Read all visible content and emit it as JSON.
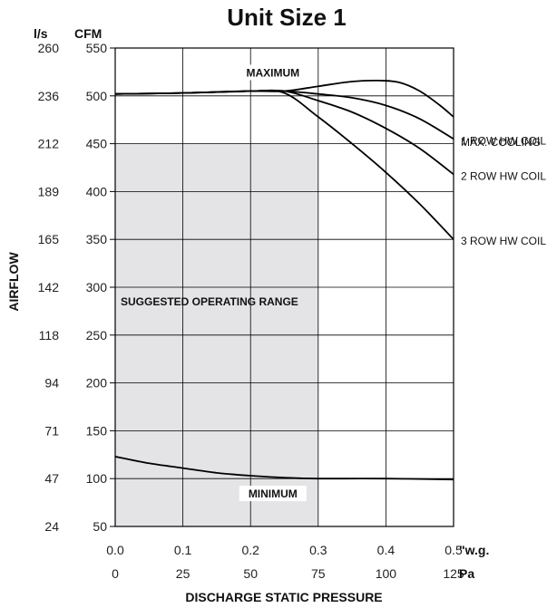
{
  "chart_data": {
    "type": "line",
    "title": "Unit Size 1",
    "ylabel": "AIRFLOW",
    "xlabel": "DISCHARGE STATIC PRESSURE",
    "y_units": {
      "primary": "CFM",
      "secondary": "l/s"
    },
    "x_units": {
      "primary": "\"w.g.",
      "secondary": "Pa"
    },
    "xlim": [
      0.0,
      0.5
    ],
    "ylim": [
      50,
      550
    ],
    "grid": true,
    "x_ticks": [
      {
        "wg": "0.0",
        "pa": "0"
      },
      {
        "wg": "0.1",
        "pa": "25"
      },
      {
        "wg": "0.2",
        "pa": "50"
      },
      {
        "wg": "0.3",
        "pa": "75"
      },
      {
        "wg": "0.4",
        "pa": "100"
      },
      {
        "wg": "0.5",
        "pa": "125"
      }
    ],
    "y_ticks": [
      {
        "cfm": "550",
        "ls": "260"
      },
      {
        "cfm": "500",
        "ls": "236"
      },
      {
        "cfm": "450",
        "ls": "212"
      },
      {
        "cfm": "400",
        "ls": "189"
      },
      {
        "cfm": "350",
        "ls": "165"
      },
      {
        "cfm": "300",
        "ls": "142"
      },
      {
        "cfm": "250",
        "ls": "118"
      },
      {
        "cfm": "200",
        "ls": "94"
      },
      {
        "cfm": "150",
        "ls": "71"
      },
      {
        "cfm": "100",
        "ls": "47"
      },
      {
        "cfm": "50",
        "ls": "24"
      }
    ],
    "operating_range": {
      "x": [
        0.0,
        0.3
      ],
      "y": [
        50,
        450
      ],
      "label": "SUGGESTED OPERATING RANGE"
    },
    "annotations": {
      "maximum": "MAXIMUM",
      "minimum": "MINIMUM"
    },
    "series": [
      {
        "name": "MAX. COOLING",
        "x": [
          0.0,
          0.1,
          0.2,
          0.25,
          0.3,
          0.35,
          0.39,
          0.42,
          0.45,
          0.48,
          0.5
        ],
        "y": [
          502,
          503,
          505,
          505,
          510,
          515,
          516,
          514,
          505,
          490,
          478
        ]
      },
      {
        "name": "1 ROW HW COIL",
        "x": [
          0.0,
          0.1,
          0.2,
          0.25,
          0.3,
          0.35,
          0.4,
          0.45,
          0.5
        ],
        "y": [
          502,
          503,
          505,
          505,
          502,
          498,
          490,
          476,
          455
        ]
      },
      {
        "name": "2 ROW HW COIL",
        "x": [
          0.0,
          0.1,
          0.2,
          0.25,
          0.3,
          0.35,
          0.4,
          0.45,
          0.5
        ],
        "y": [
          502,
          503,
          505,
          505,
          495,
          483,
          466,
          445,
          418
        ]
      },
      {
        "name": "3 ROW HW COIL",
        "x": [
          0.0,
          0.1,
          0.2,
          0.25,
          0.3,
          0.35,
          0.4,
          0.45,
          0.5
        ],
        "y": [
          502,
          503,
          505,
          503,
          478,
          450,
          420,
          387,
          350
        ]
      },
      {
        "name": "MINIMUM",
        "x": [
          0.0,
          0.05,
          0.1,
          0.15,
          0.2,
          0.25,
          0.3,
          0.4,
          0.5
        ],
        "y": [
          123,
          116,
          111,
          106,
          103,
          101,
          100,
          100,
          99
        ]
      }
    ]
  }
}
